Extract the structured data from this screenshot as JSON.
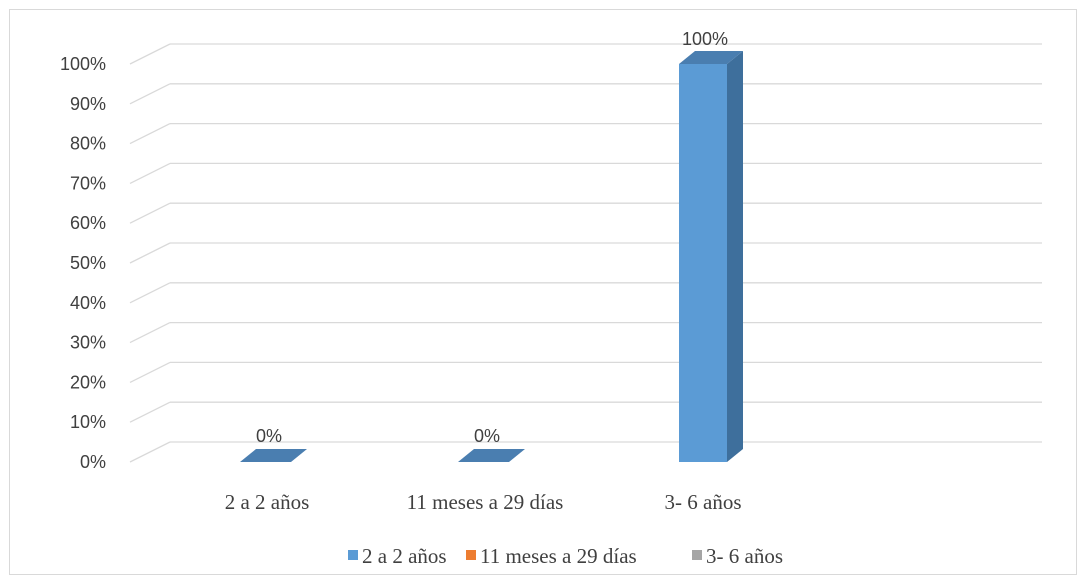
{
  "chart_data": {
    "type": "bar",
    "style": "3d-clustered-column",
    "categories": [
      "2 a 2 años",
      "11 meses a 29 días",
      "3- 6 años"
    ],
    "series": [
      {
        "name": "2 a 2 años",
        "color": "#5b9bd5",
        "values": [
          0,
          0,
          100
        ]
      },
      {
        "name": "11 meses a 29 días",
        "color": "#ed7d31",
        "values": [
          null,
          null,
          null
        ]
      },
      {
        "name": "3- 6 años",
        "color": "#a5a5a5",
        "values": [
          null,
          null,
          null
        ]
      }
    ],
    "data_labels": [
      "0%",
      "0%",
      "100%"
    ],
    "y_ticks": [
      "0%",
      "10%",
      "20%",
      "30%",
      "40%",
      "50%",
      "60%",
      "70%",
      "80%",
      "90%",
      "100%"
    ],
    "ylim": [
      0,
      100
    ],
    "grid": true,
    "legend_position": "bottom",
    "title": "",
    "xlabel": "",
    "ylabel": ""
  }
}
